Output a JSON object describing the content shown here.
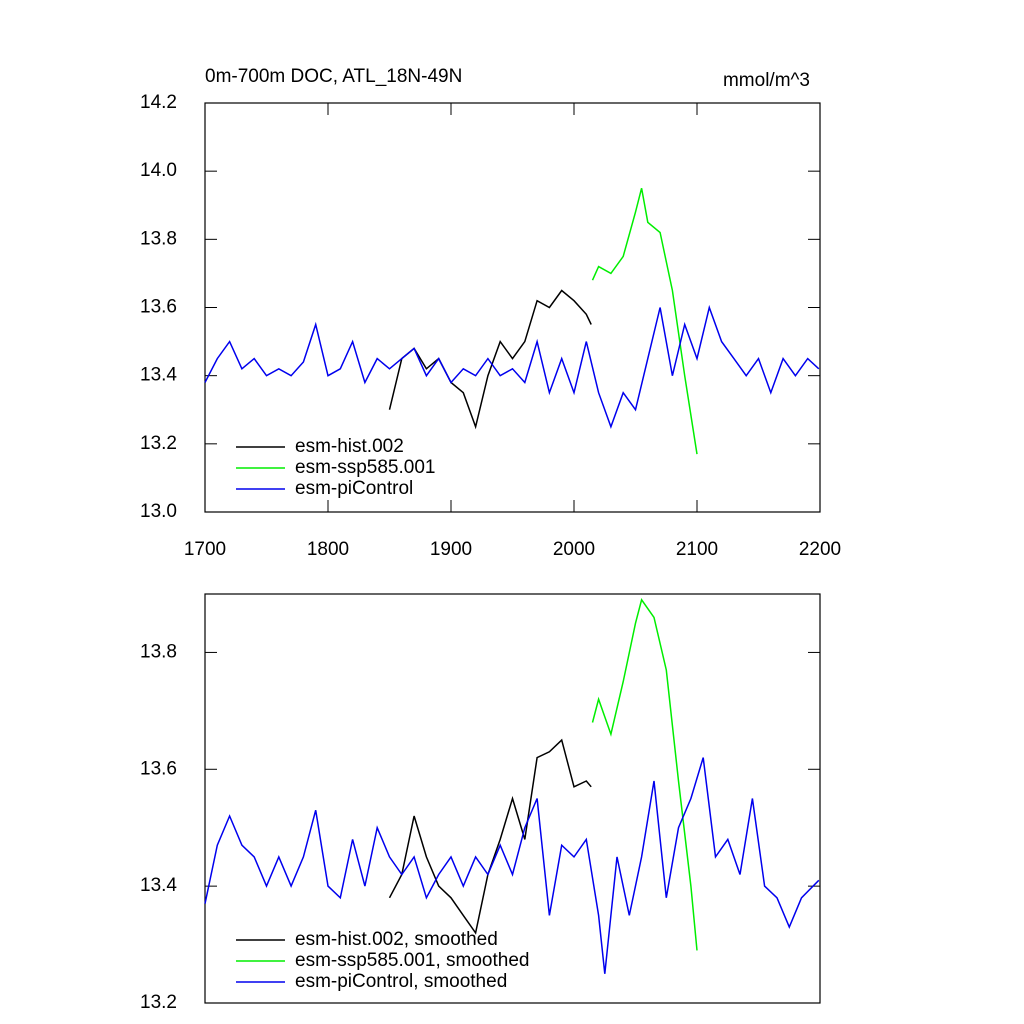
{
  "chart_data": [
    {
      "type": "line",
      "title": "0m-700m DOC, ATL_18N-49N",
      "units": "mmol/m^3",
      "xlim": [
        1700,
        2200
      ],
      "xticks": [
        1700,
        1800,
        1900,
        2000,
        2100,
        2200
      ],
      "ylim": [
        13.0,
        14.2
      ],
      "yticks": [
        {
          "value": 13.0,
          "label": "13.0"
        },
        13.2,
        13.4,
        13.6,
        13.8,
        {
          "value": 14.0,
          "label": "14.0"
        },
        14.2
      ],
      "legend": "lower left",
      "series": [
        {
          "name": "esm-hist.002",
          "color": "#000000",
          "x": [
            1850,
            1860,
            1870,
            1880,
            1890,
            1900,
            1910,
            1920,
            1930,
            1940,
            1950,
            1960,
            1970,
            1980,
            1990,
            2000,
            2010,
            2014
          ],
          "values": [
            13.3,
            13.45,
            13.48,
            13.42,
            13.45,
            13.38,
            13.35,
            13.25,
            13.4,
            13.5,
            13.45,
            13.5,
            13.62,
            13.6,
            13.65,
            13.62,
            13.58,
            13.55
          ]
        },
        {
          "name": "esm-ssp585.001",
          "color": "#00ee00",
          "x": [
            2015,
            2020,
            2030,
            2040,
            2050,
            2055,
            2060,
            2070,
            2080,
            2090,
            2100
          ],
          "values": [
            13.68,
            13.72,
            13.7,
            13.75,
            13.88,
            13.95,
            13.85,
            13.82,
            13.65,
            13.4,
            13.17
          ]
        },
        {
          "name": "esm-piControl",
          "color": "#0000ee",
          "x": [
            1700,
            1710,
            1720,
            1730,
            1740,
            1750,
            1760,
            1770,
            1780,
            1790,
            1800,
            1810,
            1820,
            1830,
            1840,
            1850,
            1860,
            1870,
            1880,
            1890,
            1900,
            1910,
            1920,
            1930,
            1940,
            1950,
            1960,
            1970,
            1980,
            1990,
            2000,
            2010,
            2020,
            2030,
            2040,
            2050,
            2060,
            2070,
            2080,
            2090,
            2100,
            2110,
            2120,
            2130,
            2140,
            2150,
            2160,
            2170,
            2180,
            2190,
            2199
          ],
          "values": [
            13.38,
            13.45,
            13.5,
            13.42,
            13.45,
            13.4,
            13.42,
            13.4,
            13.44,
            13.55,
            13.4,
            13.42,
            13.5,
            13.38,
            13.45,
            13.42,
            13.45,
            13.48,
            13.4,
            13.45,
            13.38,
            13.42,
            13.4,
            13.45,
            13.4,
            13.42,
            13.38,
            13.5,
            13.35,
            13.45,
            13.35,
            13.5,
            13.35,
            13.25,
            13.35,
            13.3,
            13.45,
            13.6,
            13.4,
            13.55,
            13.45,
            13.6,
            13.5,
            13.45,
            13.4,
            13.45,
            13.35,
            13.45,
            13.4,
            13.45,
            13.42
          ]
        }
      ]
    },
    {
      "type": "line",
      "xlim": [
        1700,
        2200
      ],
      "ylim": [
        13.2,
        13.9
      ],
      "yticks": [
        13.2,
        13.4,
        13.6,
        13.8
      ],
      "legend": "lower left",
      "series": [
        {
          "name": "esm-hist.002, smoothed",
          "color": "#000000",
          "x": [
            1850,
            1860,
            1870,
            1880,
            1890,
            1900,
            1910,
            1920,
            1930,
            1940,
            1950,
            1960,
            1970,
            1980,
            1990,
            2000,
            2010,
            2014
          ],
          "values": [
            13.38,
            13.42,
            13.52,
            13.45,
            13.4,
            13.38,
            13.35,
            13.32,
            13.42,
            13.48,
            13.55,
            13.48,
            13.62,
            13.63,
            13.65,
            13.57,
            13.58,
            13.57
          ]
        },
        {
          "name": "esm-ssp585.001, smoothed",
          "color": "#00ee00",
          "x": [
            2015,
            2020,
            2030,
            2040,
            2050,
            2055,
            2065,
            2075,
            2085,
            2095,
            2100
          ],
          "values": [
            13.68,
            13.72,
            13.66,
            13.75,
            13.85,
            13.89,
            13.86,
            13.77,
            13.58,
            13.4,
            13.29
          ]
        },
        {
          "name": "esm-piControl, smoothed",
          "color": "#0000ee",
          "x": [
            1700,
            1710,
            1720,
            1730,
            1740,
            1750,
            1760,
            1770,
            1780,
            1790,
            1800,
            1810,
            1820,
            1830,
            1840,
            1850,
            1860,
            1870,
            1880,
            1890,
            1900,
            1910,
            1920,
            1930,
            1940,
            1950,
            1960,
            1970,
            1980,
            1990,
            2000,
            2010,
            2020,
            2025,
            2035,
            2045,
            2055,
            2065,
            2075,
            2085,
            2095,
            2105,
            2115,
            2125,
            2135,
            2145,
            2155,
            2165,
            2175,
            2185,
            2199
          ],
          "values": [
            13.37,
            13.47,
            13.52,
            13.47,
            13.45,
            13.4,
            13.45,
            13.4,
            13.45,
            13.53,
            13.4,
            13.38,
            13.48,
            13.4,
            13.5,
            13.45,
            13.42,
            13.45,
            13.38,
            13.42,
            13.45,
            13.4,
            13.45,
            13.42,
            13.47,
            13.42,
            13.5,
            13.55,
            13.35,
            13.47,
            13.45,
            13.48,
            13.35,
            13.25,
            13.45,
            13.35,
            13.45,
            13.58,
            13.38,
            13.5,
            13.55,
            13.62,
            13.45,
            13.48,
            13.42,
            13.55,
            13.4,
            13.38,
            13.33,
            13.38,
            13.41
          ]
        }
      ]
    }
  ]
}
